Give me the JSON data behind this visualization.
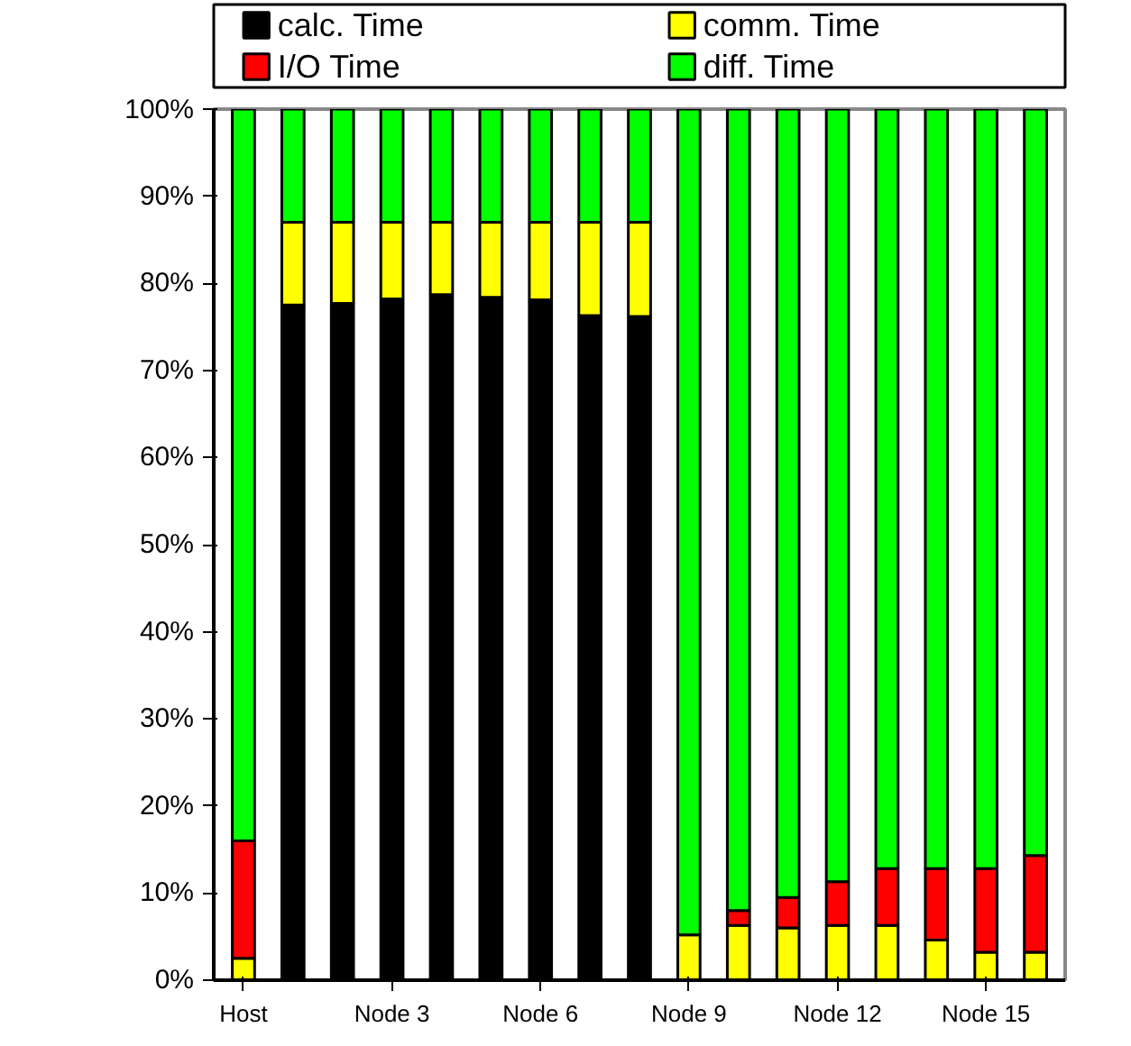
{
  "chart_data": {
    "type": "bar",
    "stacked": true,
    "categories": [
      "Host",
      null,
      null,
      "Node 3",
      null,
      null,
      "Node 6",
      null,
      null,
      "Node 9",
      null,
      null,
      "Node 12",
      null,
      null,
      "Node 15",
      null
    ],
    "series": [
      {
        "name": "calc. Time",
        "color": "#000000",
        "values": [
          0,
          77.5,
          77.7,
          78.2,
          78.7,
          78.4,
          78.1,
          76.3,
          76.2,
          0,
          0,
          0,
          0,
          0,
          0,
          0,
          0
        ]
      },
      {
        "name": "comm. Time",
        "color": "#ffff00",
        "values": [
          2.5,
          9.5,
          9.3,
          8.8,
          8.3,
          8.6,
          8.9,
          10.7,
          10.8,
          5.2,
          6.3,
          6,
          6.3,
          6.3,
          4.6,
          3.2,
          3.2
        ]
      },
      {
        "name": "I/O Time",
        "color": "#ff0000",
        "values": [
          13.5,
          0,
          0,
          0,
          0,
          0,
          0,
          0,
          0,
          0,
          1.7,
          3.5,
          5,
          6.5,
          8.2,
          9.6,
          11.1
        ]
      },
      {
        "name": "diff. Time",
        "color": "#00ff00",
        "values": [
          84,
          13,
          13,
          13,
          13,
          13,
          13,
          13,
          13,
          94.8,
          92,
          90.5,
          88.7,
          87.2,
          87.2,
          87.2,
          85.7
        ]
      }
    ],
    "ylim": [
      0,
      100
    ],
    "yticks": [
      {
        "value": 0,
        "label": "0%"
      },
      {
        "value": 10,
        "label": "10%"
      },
      {
        "value": 20,
        "label": "20%"
      },
      {
        "value": 30,
        "label": "30%"
      },
      {
        "value": 40,
        "label": "40%"
      },
      {
        "value": 50,
        "label": "50%"
      },
      {
        "value": 60,
        "label": "60%"
      },
      {
        "value": 70,
        "label": "70%"
      },
      {
        "value": 80,
        "label": "80%"
      },
      {
        "value": 90,
        "label": "90%"
      },
      {
        "value": 100,
        "label": "100%"
      }
    ],
    "grid": false,
    "legend": "top"
  }
}
